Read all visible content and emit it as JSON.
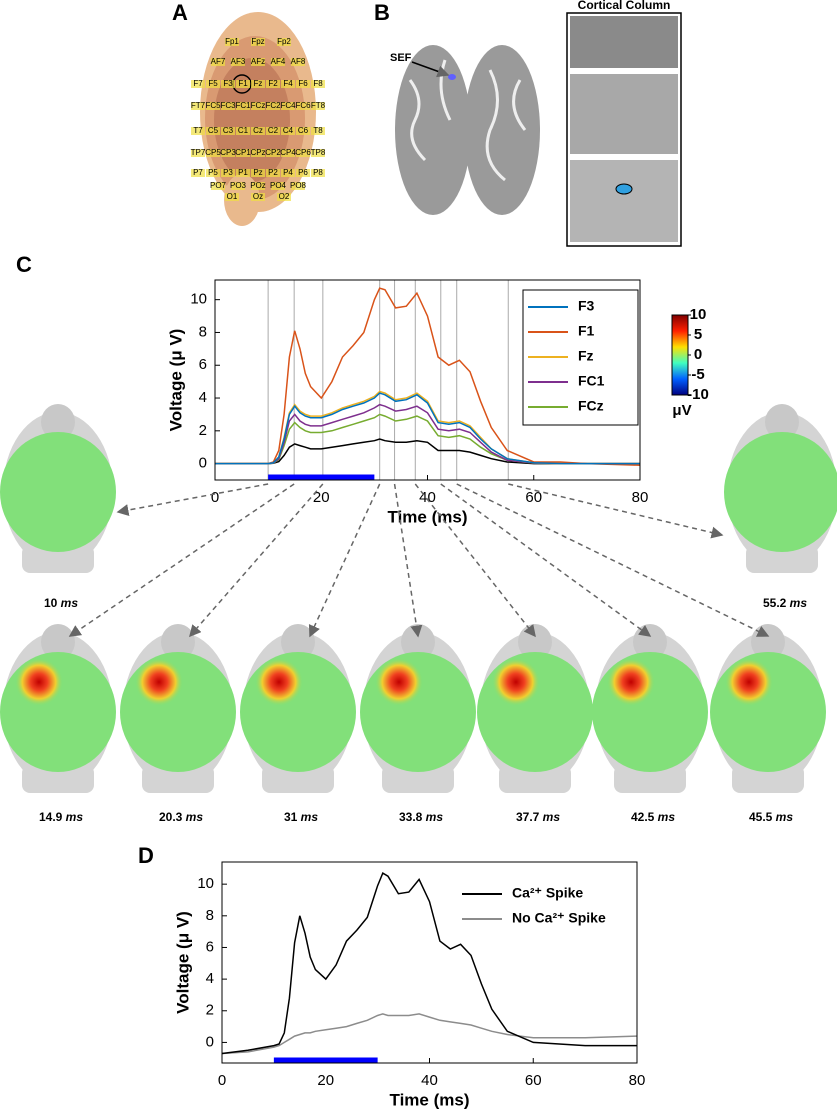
{
  "panel_labels": [
    "A",
    "B",
    "C",
    "D"
  ],
  "panel_a": {
    "electrodes": [
      [
        "Fp1",
        "Fpz",
        "Fp2"
      ],
      [
        "AF7",
        "AF3",
        "AFz",
        "AF4",
        "AF8"
      ],
      [
        "F7",
        "F5",
        "F3",
        "F1",
        "Fz",
        "F2",
        "F4",
        "F6",
        "F8"
      ],
      [
        "FT7",
        "FC5",
        "FC3",
        "FC1",
        "FCz",
        "FC2",
        "FC4",
        "FC6",
        "FT8"
      ],
      [
        "T7",
        "C5",
        "C3",
        "C1",
        "Cz",
        "C2",
        "C4",
        "C6",
        "T8"
      ],
      [
        "TP7",
        "CP5",
        "CP3",
        "CP1",
        "CPz",
        "CP2",
        "CP4",
        "CP6",
        "TP8"
      ],
      [
        "P7",
        "P5",
        "P3",
        "P1",
        "Pz",
        "P2",
        "P4",
        "P6",
        "P8"
      ],
      [
        "PO7",
        "PO3",
        "POz",
        "PO4",
        "PO8"
      ],
      [
        "O1",
        "Oz",
        "O2"
      ]
    ]
  },
  "panel_b": {
    "annotation": "SEF",
    "inset_title": "Cortical Column"
  },
  "chart_data": [
    {
      "type": "line",
      "xlabel": "Time (ms)",
      "ylabel": "Voltage (μ V)",
      "x": [
        0,
        5,
        10,
        11,
        12,
        13,
        14,
        15,
        16,
        17,
        18,
        20,
        22,
        24,
        26,
        28,
        30,
        31,
        32,
        34,
        36,
        38,
        40,
        42,
        44,
        46,
        48,
        50,
        52,
        55,
        60,
        65,
        70,
        80
      ],
      "series": [
        {
          "name": "F3",
          "color": "#0072bd",
          "values": [
            0,
            0,
            0,
            0.05,
            0.4,
            1.5,
            3,
            3.5,
            3.1,
            2.9,
            2.8,
            2.8,
            3,
            3.3,
            3.5,
            3.7,
            4,
            4.3,
            4.2,
            3.8,
            3.9,
            4.2,
            3.7,
            2.5,
            2.4,
            2.5,
            2.2,
            1.5,
            0.9,
            0.3,
            0.05,
            0,
            0,
            0
          ]
        },
        {
          "name": "F1",
          "color": "#d95319",
          "values": [
            0,
            0,
            0,
            0.1,
            0.8,
            3,
            6.5,
            8.1,
            7,
            5.5,
            4.7,
            4,
            5,
            6.5,
            7.2,
            8,
            10,
            10.7,
            10.6,
            9.5,
            9.6,
            10.4,
            9,
            6.5,
            6,
            6.3,
            5.6,
            3.8,
            2.2,
            0.8,
            0.1,
            0.1,
            0,
            -0.1
          ]
        },
        {
          "name": "Fz",
          "color": "#edb120",
          "values": [
            0,
            0,
            0,
            0.05,
            0.4,
            1.6,
            3.1,
            3.6,
            3.2,
            3,
            2.9,
            2.9,
            3.1,
            3.4,
            3.6,
            3.8,
            4.1,
            4.4,
            4.3,
            3.9,
            4,
            4.3,
            3.8,
            2.6,
            2.5,
            2.6,
            2.3,
            1.6,
            0.9,
            0.3,
            0.05,
            0,
            0,
            0
          ]
        },
        {
          "name": "FC1",
          "color": "#7e2f8e",
          "values": [
            0,
            0,
            0,
            0.04,
            0.3,
            1.3,
            2.6,
            3,
            2.6,
            2.4,
            2.3,
            2.3,
            2.5,
            2.7,
            2.9,
            3.1,
            3.4,
            3.6,
            3.5,
            3.2,
            3.3,
            3.5,
            3.1,
            2.1,
            2,
            2.1,
            1.9,
            1.3,
            0.7,
            0.2,
            0.04,
            0,
            0,
            0
          ]
        },
        {
          "name": "FCz",
          "color": "#77ac30",
          "values": [
            0,
            0,
            0,
            0.03,
            0.25,
            1.1,
            2.1,
            2.5,
            2.2,
            2,
            1.9,
            1.9,
            2,
            2.2,
            2.4,
            2.6,
            2.8,
            3,
            2.9,
            2.6,
            2.7,
            2.9,
            2.6,
            1.7,
            1.6,
            1.7,
            1.5,
            1,
            0.6,
            0.2,
            0.03,
            0,
            0,
            0
          ]
        },
        {
          "color": "#000000",
          "values": [
            0,
            0,
            0,
            0.02,
            0.12,
            0.5,
            1,
            1.2,
            1.1,
            1,
            0.9,
            0.9,
            1,
            1.1,
            1.2,
            1.3,
            1.4,
            1.5,
            1.4,
            1.3,
            1.3,
            1.4,
            1.3,
            0.8,
            0.8,
            0.8,
            0.7,
            0.5,
            0.3,
            0.1,
            0,
            0,
            0,
            0
          ]
        }
      ],
      "xlim": [
        0,
        80
      ],
      "xticks": [
        0,
        20,
        40,
        60,
        80
      ],
      "ylim": [
        -1,
        11.2
      ],
      "yticks": [
        0,
        2,
        4,
        6,
        8,
        10
      ],
      "legend": "upper right",
      "legend_frame": true,
      "stim_bar": [
        10,
        30
      ],
      "stim_color": "#0000ff",
      "markers": [
        10,
        14.9,
        20.3,
        31,
        33.8,
        37.7,
        42.5,
        45.5,
        55.2
      ],
      "marker_unit": "ms",
      "colorbar": {
        "label": "μV",
        "lim": [
          -10,
          10
        ],
        "ticks": [
          10,
          5,
          0,
          -5,
          -10
        ]
      }
    },
    {
      "type": "line",
      "xlabel": "Time (ms)",
      "ylabel": "Voltage (μ V)",
      "x": [
        0,
        5,
        10,
        11,
        12,
        13,
        14,
        15,
        16,
        17,
        18,
        20,
        22,
        24,
        26,
        28,
        30,
        31,
        32,
        34,
        36,
        38,
        40,
        42,
        44,
        46,
        48,
        50,
        52,
        55,
        60,
        65,
        70,
        80
      ],
      "series": [
        {
          "name": "Ca²⁺ Spike",
          "color": "#000000",
          "values": [
            -0.7,
            -0.5,
            -0.2,
            -0.1,
            0.6,
            2.8,
            6.3,
            8,
            6.9,
            5.4,
            4.6,
            4,
            4.9,
            6.4,
            7.1,
            7.9,
            9.9,
            10.7,
            10.5,
            9.4,
            9.5,
            10.3,
            8.9,
            6.4,
            5.9,
            6.2,
            5.5,
            3.7,
            2.1,
            0.7,
            0,
            -0.1,
            -0.2,
            -0.2
          ]
        },
        {
          "name": "No Ca²⁺ Spike",
          "color": "#8c8c8c",
          "values": [
            -0.7,
            -0.6,
            -0.3,
            -0.2,
            0,
            0.2,
            0.4,
            0.5,
            0.6,
            0.6,
            0.7,
            0.8,
            0.9,
            1,
            1.2,
            1.4,
            1.7,
            1.8,
            1.7,
            1.7,
            1.7,
            1.8,
            1.6,
            1.4,
            1.3,
            1.2,
            1.1,
            0.9,
            0.7,
            0.5,
            0.3,
            0.3,
            0.3,
            0.4
          ]
        }
      ],
      "xlim": [
        0,
        80
      ],
      "xticks": [
        0,
        20,
        40,
        60,
        80
      ],
      "ylim": [
        -1.3,
        11.4
      ],
      "yticks": [
        0,
        2,
        4,
        6,
        8,
        10
      ],
      "legend": "upper right",
      "legend_frame": false,
      "stim_bar": [
        10,
        30
      ],
      "stim_color": "#0000ff"
    }
  ]
}
